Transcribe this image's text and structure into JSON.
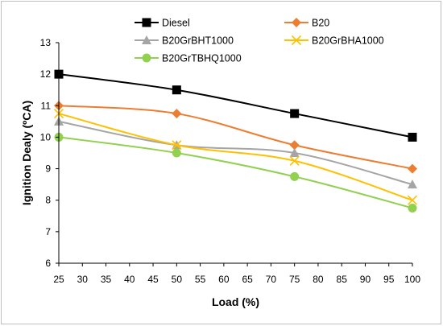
{
  "chart_data": {
    "type": "line",
    "title": "",
    "xlabel": "Load (%)",
    "ylabel": "Ignition Dealy (ºCA)",
    "x_ticks": [
      25,
      30,
      35,
      40,
      45,
      50,
      55,
      60,
      65,
      70,
      75,
      80,
      85,
      90,
      95,
      100
    ],
    "y_ticks": [
      6,
      7,
      8,
      9,
      10,
      11,
      12,
      13
    ],
    "xlim": [
      25,
      100
    ],
    "ylim": [
      6,
      13
    ],
    "grid": false,
    "legend_position": "top",
    "x": [
      25,
      50,
      75,
      100
    ],
    "series": [
      {
        "name": "Diesel",
        "values": [
          12.0,
          11.5,
          10.75,
          10.0
        ],
        "color": "#000000",
        "marker": "square"
      },
      {
        "name": "B20",
        "values": [
          11.0,
          10.75,
          9.75,
          9.0
        ],
        "color": "#ed7d31",
        "marker": "diamond"
      },
      {
        "name": "B20GrBHT1000",
        "values": [
          10.5,
          9.75,
          9.5,
          8.5
        ],
        "color": "#a5a5a5",
        "marker": "triangle"
      },
      {
        "name": "B20GrBHA1000",
        "values": [
          10.75,
          9.75,
          9.25,
          8.0
        ],
        "color": "#ffc000",
        "marker": "x"
      },
      {
        "name": "B20GrTBHQ1000",
        "values": [
          10.0,
          9.5,
          8.75,
          7.75
        ],
        "color": "#92d050",
        "marker": "circle"
      }
    ]
  }
}
